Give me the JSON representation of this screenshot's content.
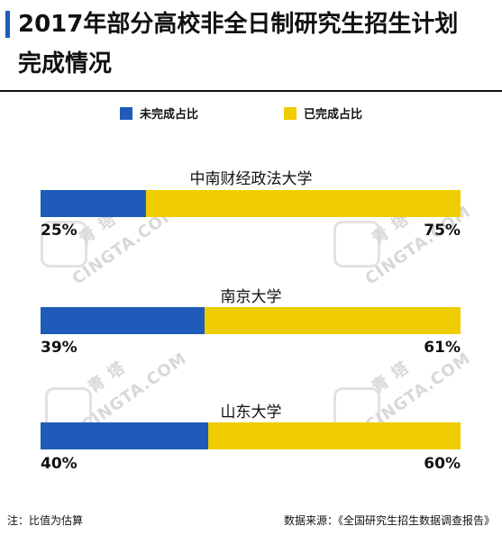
{
  "title_line1": "2017年部分高校非全日制研究生招生计划",
  "title_line2": "完成情况",
  "colors": {
    "accent": "#1f5bb8",
    "uncompleted": "#1f5bb8",
    "completed": "#efcd00"
  },
  "legend": {
    "uncompleted": "未完成占比",
    "completed": "已完成占比"
  },
  "watermark": {
    "brand_cn": "青 塔",
    "brand_en": "CINGTA.COM"
  },
  "chart_data": {
    "type": "bar",
    "orientation": "horizontal-stacked-100",
    "categories": [
      "中南财经政法大学",
      "南京大学",
      "山东大学"
    ],
    "series": [
      {
        "name": "未完成占比",
        "values": [
          25,
          39,
          40
        ],
        "labels": [
          "25%",
          "39%",
          "40%"
        ]
      },
      {
        "name": "已完成占比",
        "values": [
          75,
          61,
          60
        ],
        "labels": [
          "75%",
          "61%",
          "60%"
        ]
      }
    ],
    "xlim": [
      0,
      100
    ],
    "legend_position": "top",
    "grid": false
  },
  "footer": {
    "note": "注：比值为估算",
    "source": "数据来源：《全国研究生招生数据调查报告》"
  }
}
